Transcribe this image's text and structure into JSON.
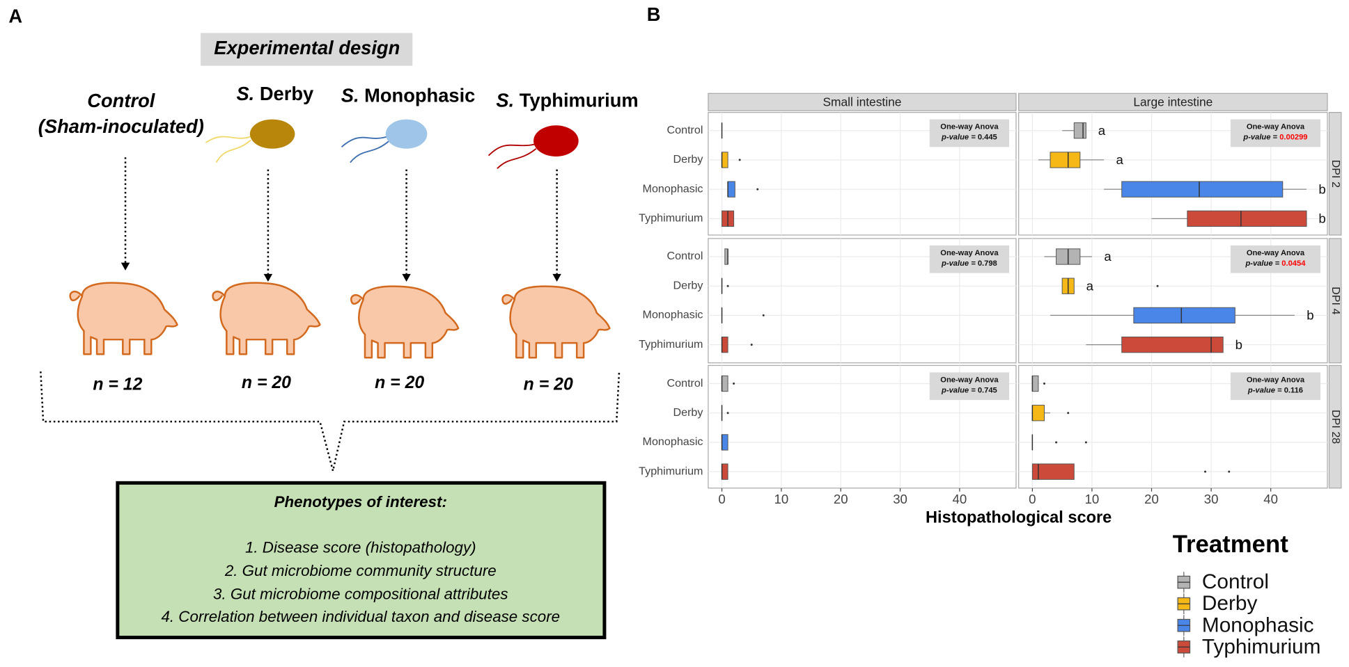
{
  "panel_a": {
    "label": "A",
    "title": "Experimental design",
    "groups": [
      {
        "name": "Control",
        "subtitle": "(Sham-inoculated)",
        "n": "n = 12"
      },
      {
        "genus": "S.",
        "name": "Derby",
        "n": "n = 20"
      },
      {
        "genus": "S.",
        "name": "Monophasic",
        "n": "n = 20"
      },
      {
        "genus": "S.",
        "name": "Typhimurium",
        "n": "n = 20"
      }
    ],
    "box": {
      "title": "Phenotypes of interest:",
      "items": [
        "1. Disease score (histopathology)",
        "2. Gut microbiome community structure",
        "3. Gut microbiome compositional attributes",
        "4. Correlation between individual taxon and disease score"
      ]
    }
  },
  "chart_data": {
    "type": "boxplot",
    "panel_label": "B",
    "x_label": "Histopathological score",
    "legend_title": "Treatment",
    "columns": [
      "Small intestine",
      "Large intestine"
    ],
    "rows": [
      "DPI 2",
      "DPI 4",
      "DPI 28"
    ],
    "categories": [
      "Control",
      "Derby",
      "Monophasic",
      "Typhimurium"
    ],
    "series": [
      {
        "name": "Control",
        "color": "#b3b3b3"
      },
      {
        "name": "Derby",
        "color": "#f5b816"
      },
      {
        "name": "Monophasic",
        "color": "#4a86e8"
      },
      {
        "name": "Typhimurium",
        "color": "#cc4a3a"
      }
    ],
    "xlim": [
      -2.3,
      49.5
    ],
    "xticks": [
      0,
      10,
      20,
      30,
      40
    ],
    "grid": true,
    "test_label": "One-way  Anova",
    "p_label": "p-value =",
    "facets": [
      [
        {
          "p_value": 0.445,
          "boxes": [
            {
              "min": 0,
              "q1": 0,
              "median": 0,
              "q3": 0,
              "max": 0
            },
            {
              "min": 0,
              "q1": 0,
              "median": 0,
              "q3": 1,
              "max": 1,
              "outliers": [
                3
              ]
            },
            {
              "min": 1,
              "q1": 1,
              "median": 1,
              "q3": 2.2,
              "max": 2.2,
              "outliers": [
                6
              ]
            },
            {
              "min": 0,
              "q1": 0,
              "median": 1,
              "q3": 2,
              "max": 2
            }
          ]
        },
        {
          "p_value": 0.00299,
          "p_value_color": "#ff0000",
          "boxes": [
            {
              "min": 5,
              "q1": 7,
              "median": 8.5,
              "q3": 9,
              "max": 9,
              "letter": "a"
            },
            {
              "min": 1,
              "q1": 3,
              "median": 6,
              "q3": 8,
              "max": 12,
              "letter": "a"
            },
            {
              "min": 12,
              "q1": 15,
              "median": 28,
              "q3": 42,
              "max": 46,
              "letter": "b"
            },
            {
              "min": 20,
              "q1": 26,
              "median": 35,
              "q3": 46,
              "max": 46,
              "letter": "b"
            }
          ]
        }
      ],
      [
        {
          "p_value": 0.798,
          "boxes": [
            {
              "min": 0.5,
              "q1": 0.5,
              "median": 1,
              "q3": 1,
              "max": 1
            },
            {
              "min": 0,
              "q1": 0,
              "median": 0,
              "q3": 0,
              "max": 0,
              "outliers": [
                1
              ]
            },
            {
              "min": 0,
              "q1": 0,
              "median": 0,
              "q3": 0,
              "max": 0,
              "outliers": [
                7
              ]
            },
            {
              "min": 0,
              "q1": 0,
              "median": 0,
              "q3": 1,
              "max": 1,
              "outliers": [
                5
              ]
            }
          ]
        },
        {
          "p_value": 0.0454,
          "p_value_color": "#ff0000",
          "boxes": [
            {
              "min": 2,
              "q1": 4,
              "median": 6,
              "q3": 8,
              "max": 10,
              "letter": "a"
            },
            {
              "min": 5,
              "q1": 5,
              "median": 6,
              "q3": 7,
              "max": 7,
              "outliers": [
                21
              ],
              "letter": "a"
            },
            {
              "min": 3,
              "q1": 17,
              "median": 25,
              "q3": 34,
              "max": 44,
              "letter": "b"
            },
            {
              "min": 9,
              "q1": 15,
              "median": 30,
              "q3": 32,
              "max": 32,
              "letter": "b"
            }
          ]
        }
      ],
      [
        {
          "p_value": 0.745,
          "boxes": [
            {
              "min": 0,
              "q1": 0,
              "median": 0,
              "q3": 1,
              "max": 1,
              "outliers": [
                2
              ]
            },
            {
              "min": 0,
              "q1": 0,
              "median": 0,
              "q3": 0,
              "max": 0,
              "outliers": [
                1
              ]
            },
            {
              "min": 0,
              "q1": 0,
              "median": 0,
              "q3": 1,
              "max": 1
            },
            {
              "min": 0,
              "q1": 0,
              "median": 0,
              "q3": 1,
              "max": 1
            }
          ]
        },
        {
          "p_value": 0.116,
          "boxes": [
            {
              "min": 0,
              "q1": 0,
              "median": 0,
              "q3": 1,
              "max": 1,
              "outliers": [
                2
              ]
            },
            {
              "min": 0,
              "q1": 0,
              "median": 0,
              "q3": 2,
              "max": 3,
              "outliers": [
                6
              ]
            },
            {
              "min": 0,
              "q1": 0,
              "median": 0,
              "q3": 0,
              "max": 0,
              "outliers": [
                4,
                9
              ]
            },
            {
              "min": 0,
              "q1": 0,
              "median": 1,
              "q3": 7,
              "max": 7,
              "outliers": [
                29,
                33
              ]
            }
          ]
        }
      ]
    ]
  }
}
